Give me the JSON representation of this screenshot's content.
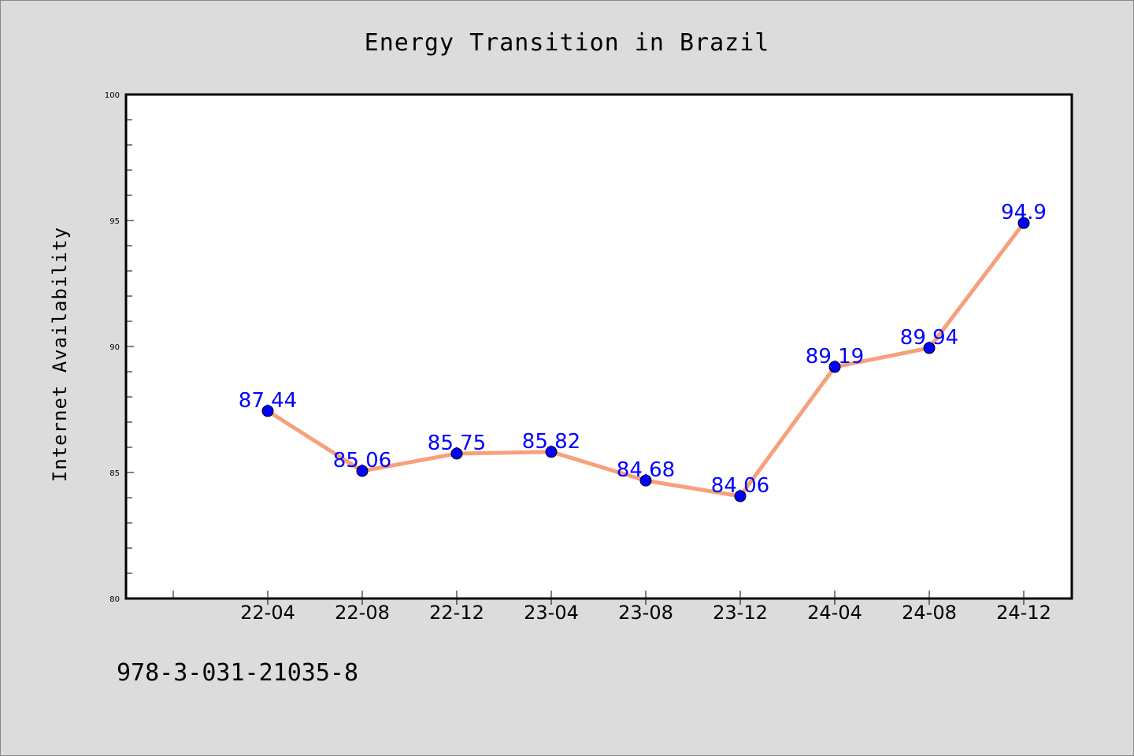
{
  "colors": {
    "background": "#dcdcdc",
    "plot_background": "#ffffff",
    "line": "#f7a07e",
    "marker": "#0000ff",
    "data_label": "#0000ff",
    "axes": "#000000"
  },
  "footer": {
    "isbn": "978-3-031-21035-8"
  },
  "chart_data": {
    "type": "line",
    "title": "Energy Transition in Brazil",
    "xlabel": "",
    "ylabel": "Internet Availability",
    "categories": [
      "22-04",
      "22-08",
      "22-12",
      "23-04",
      "23-08",
      "23-12",
      "24-04",
      "24-08",
      "24-12"
    ],
    "series": [
      {
        "values": [
          87.44,
          85.06,
          85.75,
          85.82,
          84.68,
          84.06,
          89.19,
          89.94,
          94.9
        ]
      }
    ],
    "data_labels": [
      "87.44",
      "85.06",
      "85.75",
      "85.82",
      "84.68",
      "84.06",
      "89.19",
      "89.94",
      "94.9"
    ],
    "ylim": [
      80,
      100
    ],
    "yticks": [
      80,
      85,
      90,
      95,
      100
    ],
    "grid": false,
    "legend": "none"
  }
}
